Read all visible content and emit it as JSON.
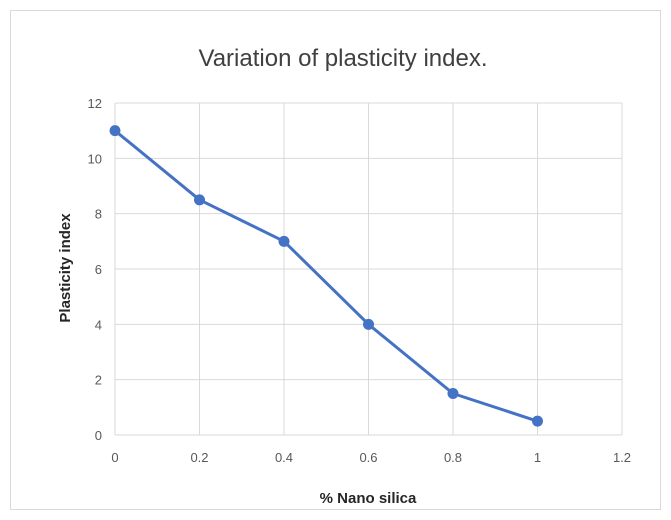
{
  "chart_data": {
    "type": "line",
    "title": "Variation of plasticity index.",
    "xlabel": "% Nano silica",
    "ylabel": "Plasticity index",
    "xlim": [
      0,
      1.2
    ],
    "ylim": [
      0,
      12
    ],
    "xticks": [
      "0",
      "0.2",
      "0.4",
      "0.6",
      "0.8",
      "1",
      "1.2"
    ],
    "yticks": [
      "0",
      "2",
      "4",
      "6",
      "8",
      "10",
      "12"
    ],
    "grid": true,
    "legend": "none",
    "series": [
      {
        "color": "#4472c4",
        "x": [
          0,
          0.2,
          0.4,
          0.6,
          0.8,
          1.0
        ],
        "y": [
          11,
          8.5,
          7,
          4,
          1.5,
          0.5
        ]
      }
    ]
  }
}
